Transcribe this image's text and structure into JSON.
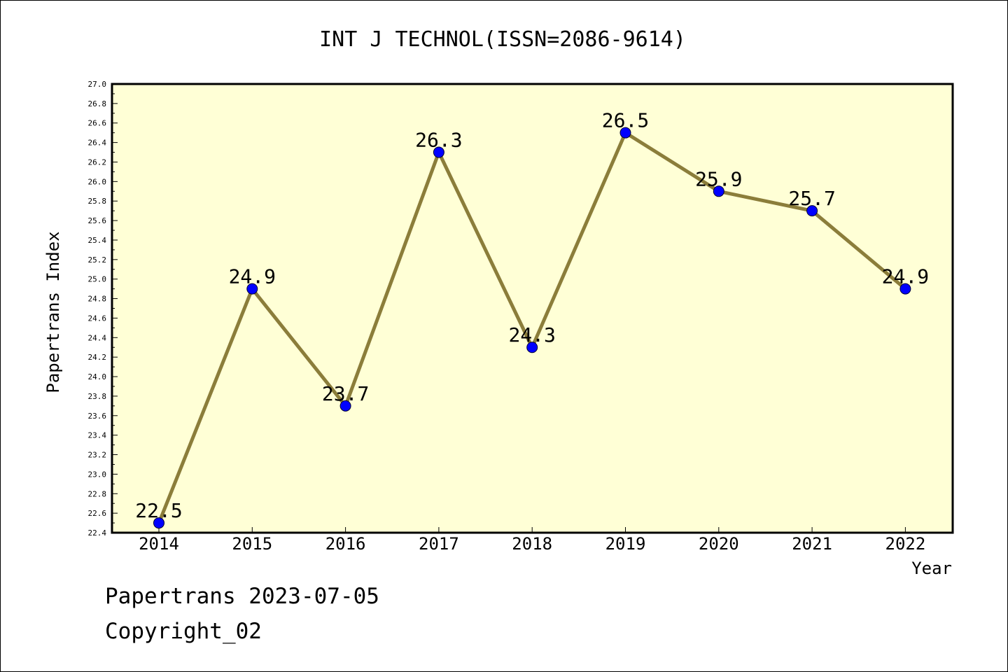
{
  "chart_data": {
    "type": "line",
    "title": "INT J TECHNOL(ISSN=2086-9614)",
    "xlabel": "Year",
    "ylabel": "Papertrans Index",
    "categories": [
      "2014",
      "2015",
      "2016",
      "2017",
      "2018",
      "2019",
      "2020",
      "2021",
      "2022"
    ],
    "values": [
      22.5,
      24.9,
      23.7,
      26.3,
      24.3,
      26.5,
      25.9,
      25.7,
      24.9
    ],
    "value_labels": [
      "22.5",
      "24.9",
      "23.7",
      "26.3",
      "24.3",
      "26.5",
      "25.9",
      "25.7",
      "24.9"
    ],
    "ylim": [
      22.4,
      27.0
    ],
    "yticks": [
      "22.4",
      "22.6",
      "22.8",
      "23.0",
      "23.2",
      "23.4",
      "23.6",
      "23.8",
      "24.0",
      "24.2",
      "24.4",
      "24.6",
      "24.8",
      "25.0",
      "25.2",
      "25.4",
      "25.6",
      "25.8",
      "26.0",
      "26.2",
      "26.4",
      "26.6",
      "26.8",
      "27.0"
    ],
    "grid": false,
    "legend": "none",
    "colors": {
      "plot_background": "#ffffd6",
      "line": "#8b7d3a",
      "marker": "#0000ff"
    }
  },
  "footer": {
    "source": "Papertrans 2023-07-05",
    "copyright": "Copyright_02"
  }
}
